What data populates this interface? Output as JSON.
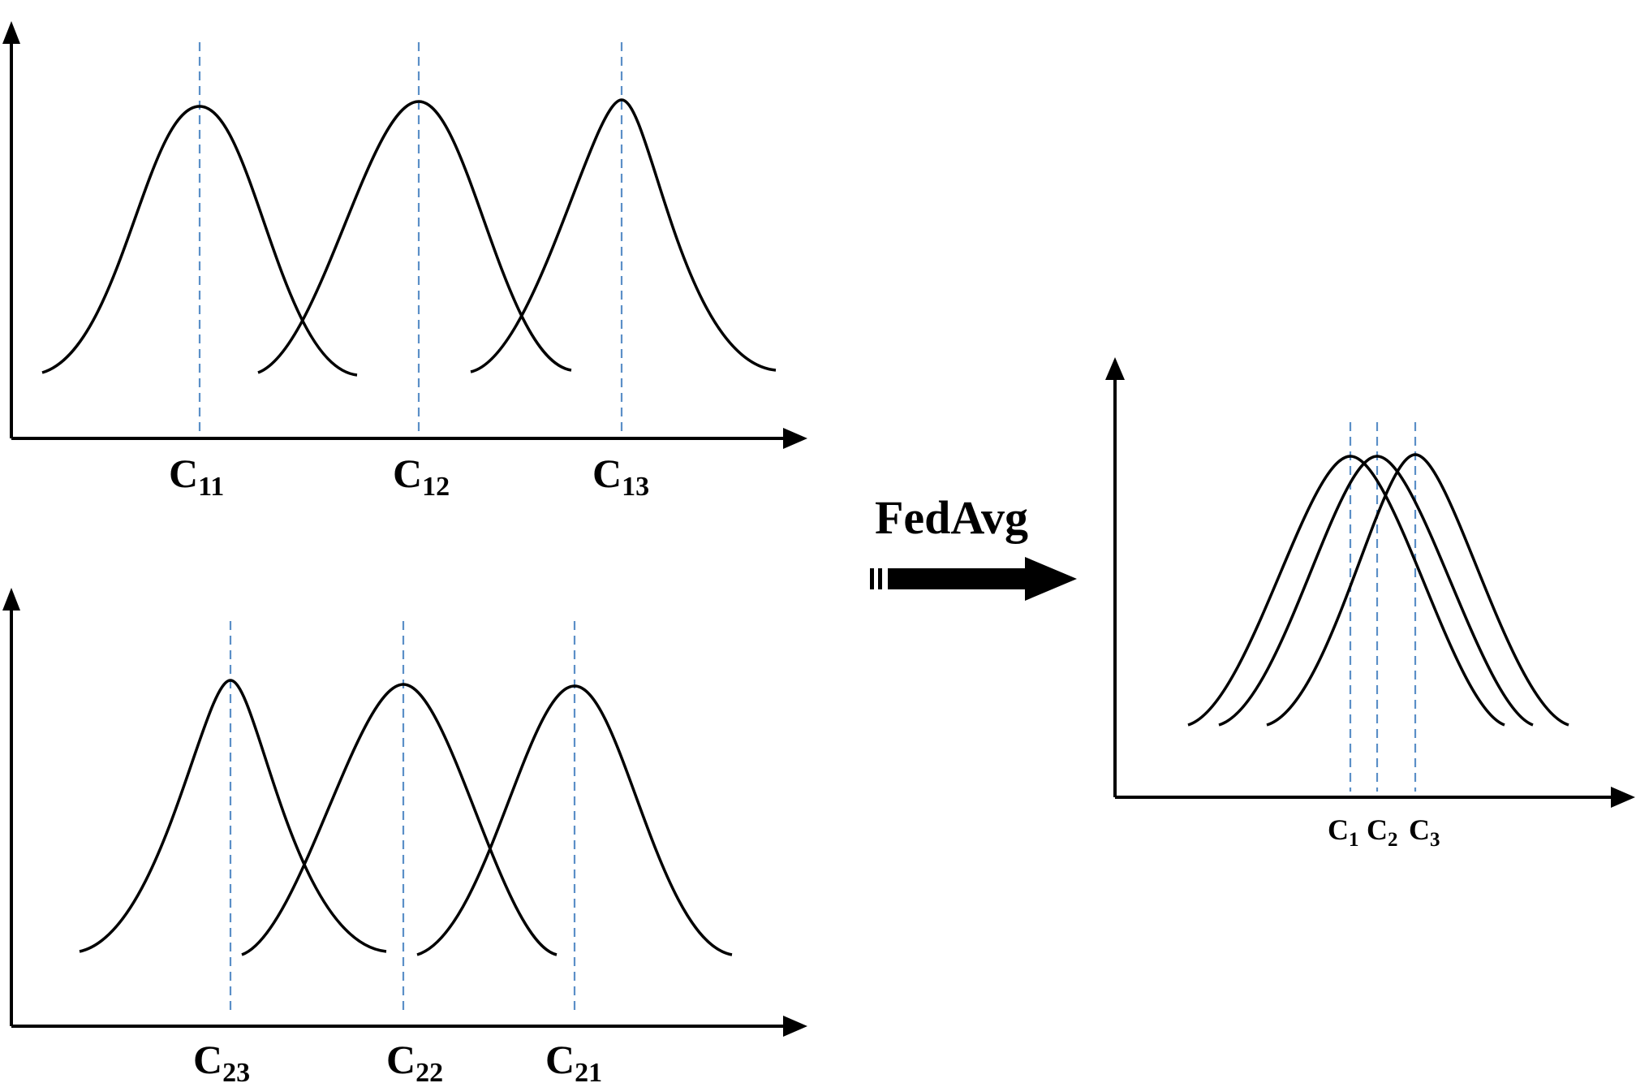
{
  "panels": [
    {
      "id": "client-1",
      "curves": [
        {
          "name": "C11",
          "label_main": "C",
          "label_sub": "11"
        },
        {
          "name": "C12",
          "label_main": "C",
          "label_sub": "12"
        },
        {
          "name": "C13",
          "label_main": "C",
          "label_sub": "13"
        }
      ]
    },
    {
      "id": "client-2",
      "curves": [
        {
          "name": "C23",
          "label_main": "C",
          "label_sub": "23"
        },
        {
          "name": "C22",
          "label_main": "C",
          "label_sub": "22"
        },
        {
          "name": "C21",
          "label_main": "C",
          "label_sub": "21"
        }
      ]
    },
    {
      "id": "global",
      "curves": [
        {
          "name": "C1",
          "label_main": "C",
          "label_sub": "1"
        },
        {
          "name": "C2",
          "label_main": "C",
          "label_sub": "2"
        },
        {
          "name": "C3",
          "label_main": "C",
          "label_sub": "3"
        }
      ]
    }
  ],
  "arrow": {
    "label": "FedAvg"
  },
  "colors": {
    "curve": "#000000",
    "guide": "#5b8fc7",
    "axis": "#000000"
  }
}
